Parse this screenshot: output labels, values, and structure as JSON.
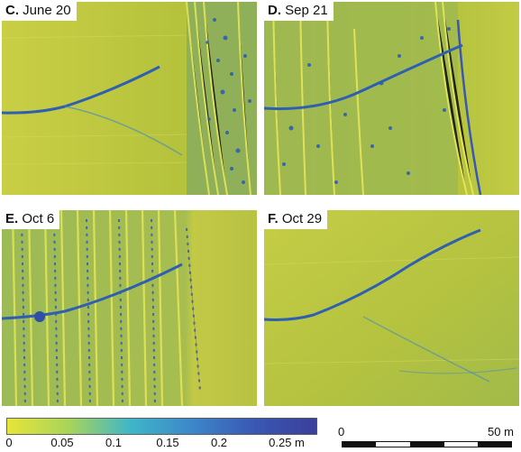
{
  "panels": {
    "c": {
      "letter": "C.",
      "date": "June 20"
    },
    "d": {
      "letter": "D.",
      "date": "Sep 21"
    },
    "e": {
      "letter": "E.",
      "date": "Oct 6"
    },
    "f": {
      "letter": "F.",
      "date": "Oct 29"
    }
  },
  "colorbar": {
    "ticks": [
      "0",
      "0.05",
      "0.1",
      "0.15",
      "0.2",
      "0.25 m"
    ],
    "colors": [
      "#e8e43a",
      "#a8d45a",
      "#3fb6c8",
      "#3d86c9",
      "#3a57b3",
      "#3a3f9a"
    ]
  },
  "scalebar": {
    "start_label": "0",
    "end_label": "50 m"
  },
  "colors": {
    "terrain": "#b9c53a",
    "channel": "#2f5fb0",
    "highlight": "#f0ec5a"
  }
}
